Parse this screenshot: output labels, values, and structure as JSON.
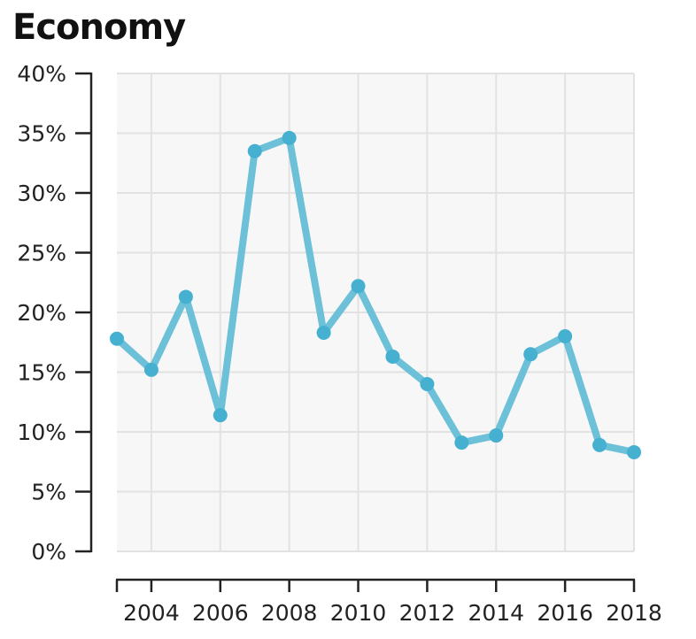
{
  "chart_data": {
    "type": "line",
    "title": "Economy",
    "xlabel": "",
    "ylabel": "",
    "x": [
      2003,
      2004,
      2005,
      2006,
      2007,
      2008,
      2009,
      2010,
      2011,
      2012,
      2013,
      2014,
      2015,
      2016,
      2017,
      2018
    ],
    "series": [
      {
        "values": [
          17.8,
          15.2,
          21.3,
          11.4,
          33.5,
          34.6,
          18.3,
          22.2,
          16.3,
          14.0,
          9.1,
          9.7,
          16.5,
          18.0,
          8.9,
          8.3
        ]
      }
    ],
    "xlim": [
      2003,
      2018
    ],
    "ylim": [
      0,
      40
    ],
    "x_ticks": [
      "2004",
      "2006",
      "2008",
      "2010",
      "2012",
      "2014",
      "2016",
      "2018"
    ],
    "y_ticks": [
      "0%",
      "5%",
      "10%",
      "15%",
      "20%",
      "25%",
      "30%",
      "35%",
      "40%"
    ],
    "grid": true,
    "colors": {
      "line": "#6cc0d8",
      "marker": "#45b0d0",
      "plot_background": "#f7f7f7",
      "grid": "#e2e2e2",
      "axis": "#222222"
    }
  }
}
